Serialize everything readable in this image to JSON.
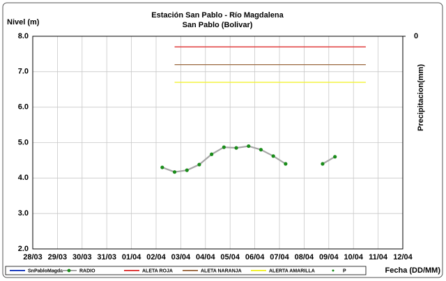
{
  "chart_data": {
    "type": "line",
    "title": "Estación San Pablo - Río Magdalena",
    "subtitle": "San Pablo (Bolivar)",
    "y_label": "Nivel (m)",
    "y2_label": "Precipitacion(mm)",
    "x_label": "Fecha (DD/MM)",
    "xlim": [
      0,
      15
    ],
    "xticks": [
      {
        "value": 0,
        "label": "28/03"
      },
      {
        "value": 1,
        "label": "29/03"
      },
      {
        "value": 2,
        "label": "30/03"
      },
      {
        "value": 3,
        "label": "31/03"
      },
      {
        "value": 4,
        "label": "01/04"
      },
      {
        "value": 5,
        "label": "02/04"
      },
      {
        "value": 6,
        "label": "03/04"
      },
      {
        "value": 7,
        "label": "04/04"
      },
      {
        "value": 8,
        "label": "05/04"
      },
      {
        "value": 9,
        "label": "06/04"
      },
      {
        "value": 10,
        "label": "07/04"
      },
      {
        "value": 11,
        "label": "08/04"
      },
      {
        "value": 12,
        "label": "09/04"
      },
      {
        "value": 13,
        "label": "10/04"
      },
      {
        "value": 14,
        "label": "11/04"
      },
      {
        "value": 15,
        "label": "12/04"
      }
    ],
    "ylim": [
      2,
      8
    ],
    "yticks": [
      {
        "value": 2,
        "label": "2.0"
      },
      {
        "value": 3,
        "label": "3.0"
      },
      {
        "value": 4,
        "label": "4.0"
      },
      {
        "value": 5,
        "label": "5.0"
      },
      {
        "value": 6,
        "label": "6.0"
      },
      {
        "value": 7,
        "label": "7.0"
      },
      {
        "value": 8,
        "label": "8.0"
      }
    ],
    "y2ticks": [
      0
    ],
    "grid": true,
    "legend": "bottom",
    "series": [
      {
        "name": "SnPabloMagda",
        "color": "#1f3fbf",
        "x": [],
        "values": []
      },
      {
        "name": "RADIO",
        "color": "#a6a6a6",
        "marker_color": "#1a8c1a",
        "x": [
          5.25,
          5.75,
          6.25,
          6.75,
          7.25,
          7.75,
          8.25,
          8.75,
          9.25,
          9.75,
          10.25,
          10.75,
          11.25,
          11.75,
          12.25
        ],
        "values": [
          4.3,
          4.17,
          4.22,
          4.38,
          4.67,
          4.87,
          4.85,
          4.9,
          4.8,
          4.62,
          4.4,
          null,
          null,
          4.4,
          4.6
        ]
      },
      {
        "name": "ALETA ROJA",
        "color": "#e03c3c",
        "x": [
          5.75,
          13.5
        ],
        "values": [
          7.7,
          7.7
        ]
      },
      {
        "name": "ALETA NARANJA",
        "color": "#a0704a",
        "x": [
          5.75,
          13.5
        ],
        "values": [
          7.2,
          7.2
        ]
      },
      {
        "name": "ALERTA AMARILLA",
        "color": "#f2f230",
        "x": [
          5.75,
          13.5
        ],
        "values": [
          6.7,
          6.7
        ]
      },
      {
        "name": "P",
        "color": "#1a8c1a",
        "x": [],
        "values": []
      }
    ]
  }
}
